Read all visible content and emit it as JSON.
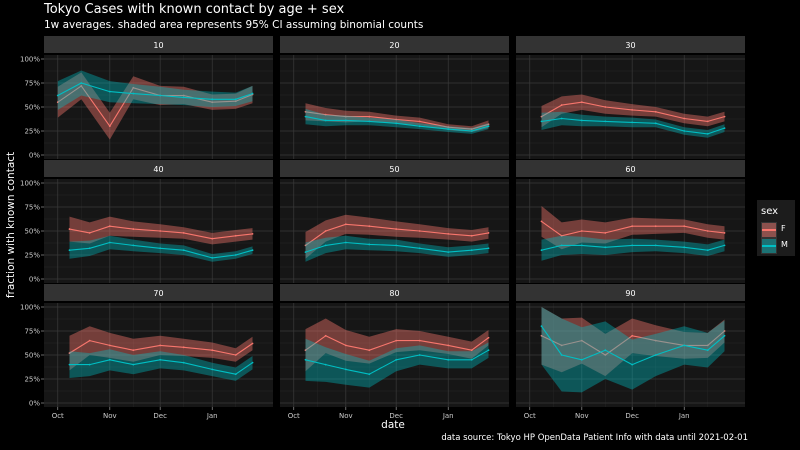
{
  "chart_data": {
    "type": "line",
    "title": "Tokyo Cases with known contact by age + sex",
    "subtitle": "1w averages. shaded area represents 95% CI assuming binomial counts",
    "xlabel": "date",
    "ylabel": "fraction with known contact",
    "caption": "data source: Tokyo HP OpenData Patient Info with data until 2021-02-01",
    "x_ticks": [
      "Oct",
      "Nov",
      "Dec",
      "Jan"
    ],
    "y_ticks": [
      "0%",
      "25%",
      "50%",
      "75%",
      "100%"
    ],
    "ylim": [
      0,
      1
    ],
    "grid": true,
    "legend": {
      "title": "sex",
      "position": "right",
      "entries": [
        {
          "name": "F",
          "color": "#F8766D"
        },
        {
          "name": "M",
          "color": "#00BFC4"
        }
      ]
    },
    "facets": [
      {
        "label": "10",
        "series": [
          {
            "name": "F",
            "x": [
              "2020-10-01",
              "2020-10-15",
              "2020-11-01",
              "2020-11-15",
              "2020-12-01",
              "2020-12-15",
              "2021-01-01",
              "2021-01-15",
              "2021-01-25"
            ],
            "values": [
              0.55,
              0.72,
              0.3,
              0.7,
              0.62,
              0.62,
              0.55,
              0.56,
              0.63
            ],
            "ci_width": [
              0.16,
              0.14,
              0.14,
              0.12,
              0.1,
              0.09,
              0.08,
              0.08,
              0.09
            ]
          },
          {
            "name": "M",
            "x": [
              "2020-10-01",
              "2020-10-15",
              "2020-11-01",
              "2020-11-15",
              "2020-12-01",
              "2020-12-15",
              "2021-01-01",
              "2021-01-15",
              "2021-01-25"
            ],
            "values": [
              0.62,
              0.75,
              0.66,
              0.64,
              0.62,
              0.6,
              0.58,
              0.58,
              0.64
            ],
            "ci_width": [
              0.15,
              0.13,
              0.11,
              0.1,
              0.09,
              0.08,
              0.08,
              0.07,
              0.08
            ]
          }
        ]
      },
      {
        "label": "20",
        "series": [
          {
            "name": "F",
            "x": [
              "2020-10-08",
              "2020-10-20",
              "2020-11-01",
              "2020-11-15",
              "2020-12-01",
              "2020-12-15",
              "2021-01-01",
              "2021-01-15",
              "2021-01-25"
            ],
            "values": [
              0.45,
              0.42,
              0.4,
              0.4,
              0.37,
              0.35,
              0.29,
              0.27,
              0.32
            ],
            "ci_width": [
              0.09,
              0.07,
              0.06,
              0.05,
              0.04,
              0.04,
              0.03,
              0.03,
              0.04
            ]
          },
          {
            "name": "M",
            "x": [
              "2020-10-08",
              "2020-10-20",
              "2020-11-01",
              "2020-11-15",
              "2020-12-01",
              "2020-12-15",
              "2021-01-01",
              "2021-01-15",
              "2021-01-25"
            ],
            "values": [
              0.4,
              0.36,
              0.36,
              0.35,
              0.33,
              0.3,
              0.27,
              0.25,
              0.3
            ],
            "ci_width": [
              0.08,
              0.06,
              0.05,
              0.04,
              0.04,
              0.03,
              0.03,
              0.03,
              0.03
            ]
          }
        ]
      },
      {
        "label": "30",
        "series": [
          {
            "name": "F",
            "x": [
              "2020-10-08",
              "2020-10-20",
              "2020-11-01",
              "2020-11-15",
              "2020-12-01",
              "2020-12-15",
              "2021-01-01",
              "2021-01-15",
              "2021-01-25"
            ],
            "values": [
              0.4,
              0.52,
              0.55,
              0.5,
              0.47,
              0.45,
              0.38,
              0.35,
              0.4
            ],
            "ci_width": [
              0.11,
              0.09,
              0.08,
              0.07,
              0.06,
              0.05,
              0.05,
              0.05,
              0.05
            ]
          },
          {
            "name": "M",
            "x": [
              "2020-10-08",
              "2020-10-20",
              "2020-11-01",
              "2020-11-15",
              "2020-12-01",
              "2020-12-15",
              "2021-01-01",
              "2021-01-15",
              "2021-01-25"
            ],
            "values": [
              0.35,
              0.38,
              0.36,
              0.35,
              0.34,
              0.33,
              0.25,
              0.22,
              0.28
            ],
            "ci_width": [
              0.09,
              0.07,
              0.06,
              0.05,
              0.05,
              0.04,
              0.04,
              0.04,
              0.04
            ]
          }
        ]
      },
      {
        "label": "40",
        "series": [
          {
            "name": "F",
            "x": [
              "2020-10-08",
              "2020-10-20",
              "2020-11-01",
              "2020-11-15",
              "2020-12-01",
              "2020-12-15",
              "2021-01-01",
              "2021-01-15",
              "2021-01-25"
            ],
            "values": [
              0.52,
              0.48,
              0.55,
              0.52,
              0.5,
              0.48,
              0.42,
              0.45,
              0.47
            ],
            "ci_width": [
              0.13,
              0.11,
              0.1,
              0.08,
              0.07,
              0.06,
              0.06,
              0.06,
              0.06
            ]
          },
          {
            "name": "M",
            "x": [
              "2020-10-08",
              "2020-10-20",
              "2020-11-01",
              "2020-11-15",
              "2020-12-01",
              "2020-12-15",
              "2021-01-01",
              "2021-01-15",
              "2021-01-25"
            ],
            "values": [
              0.3,
              0.32,
              0.38,
              0.35,
              0.32,
              0.3,
              0.22,
              0.25,
              0.3
            ],
            "ci_width": [
              0.09,
              0.08,
              0.07,
              0.06,
              0.05,
              0.05,
              0.04,
              0.04,
              0.04
            ]
          }
        ]
      },
      {
        "label": "50",
        "series": [
          {
            "name": "F",
            "x": [
              "2020-10-08",
              "2020-10-20",
              "2020-11-01",
              "2020-11-15",
              "2020-12-01",
              "2020-12-15",
              "2021-01-01",
              "2021-01-15",
              "2021-01-25"
            ],
            "values": [
              0.35,
              0.5,
              0.57,
              0.55,
              0.52,
              0.5,
              0.47,
              0.45,
              0.48
            ],
            "ci_width": [
              0.14,
              0.11,
              0.1,
              0.09,
              0.08,
              0.07,
              0.06,
              0.06,
              0.06
            ]
          },
          {
            "name": "M",
            "x": [
              "2020-10-08",
              "2020-10-20",
              "2020-11-01",
              "2020-11-15",
              "2020-12-01",
              "2020-12-15",
              "2021-01-01",
              "2021-01-15",
              "2021-01-25"
            ],
            "values": [
              0.28,
              0.35,
              0.38,
              0.36,
              0.35,
              0.32,
              0.28,
              0.3,
              0.32
            ],
            "ci_width": [
              0.1,
              0.08,
              0.07,
              0.06,
              0.06,
              0.05,
              0.05,
              0.05,
              0.05
            ]
          }
        ]
      },
      {
        "label": "60",
        "series": [
          {
            "name": "F",
            "x": [
              "2020-10-08",
              "2020-10-20",
              "2020-11-01",
              "2020-11-15",
              "2020-12-01",
              "2020-12-15",
              "2021-01-01",
              "2021-01-15",
              "2021-01-25"
            ],
            "values": [
              0.6,
              0.45,
              0.5,
              0.48,
              0.55,
              0.55,
              0.55,
              0.5,
              0.48
            ],
            "ci_width": [
              0.16,
              0.14,
              0.12,
              0.11,
              0.09,
              0.08,
              0.07,
              0.07,
              0.07
            ]
          },
          {
            "name": "M",
            "x": [
              "2020-10-08",
              "2020-10-20",
              "2020-11-01",
              "2020-11-15",
              "2020-12-01",
              "2020-12-15",
              "2021-01-01",
              "2021-01-15",
              "2021-01-25"
            ],
            "values": [
              0.3,
              0.35,
              0.35,
              0.33,
              0.35,
              0.35,
              0.33,
              0.3,
              0.35
            ],
            "ci_width": [
              0.11,
              0.1,
              0.09,
              0.08,
              0.07,
              0.06,
              0.06,
              0.06,
              0.06
            ]
          }
        ]
      },
      {
        "label": "70",
        "series": [
          {
            "name": "F",
            "x": [
              "2020-10-08",
              "2020-10-20",
              "2020-11-01",
              "2020-11-15",
              "2020-12-01",
              "2020-12-15",
              "2021-01-01",
              "2021-01-15",
              "2021-01-25"
            ],
            "values": [
              0.52,
              0.65,
              0.6,
              0.55,
              0.6,
              0.58,
              0.55,
              0.5,
              0.62
            ],
            "ci_width": [
              0.18,
              0.15,
              0.13,
              0.12,
              0.1,
              0.09,
              0.08,
              0.07,
              0.07
            ]
          },
          {
            "name": "M",
            "x": [
              "2020-10-08",
              "2020-10-20",
              "2020-11-01",
              "2020-11-15",
              "2020-12-01",
              "2020-12-15",
              "2021-01-01",
              "2021-01-15",
              "2021-01-25"
            ],
            "values": [
              0.4,
              0.4,
              0.45,
              0.4,
              0.45,
              0.42,
              0.35,
              0.3,
              0.42
            ],
            "ci_width": [
              0.14,
              0.12,
              0.11,
              0.1,
              0.09,
              0.08,
              0.07,
              0.07,
              0.07
            ]
          }
        ]
      },
      {
        "label": "80",
        "series": [
          {
            "name": "F",
            "x": [
              "2020-10-08",
              "2020-10-20",
              "2020-11-01",
              "2020-11-15",
              "2020-12-01",
              "2020-12-15",
              "2021-01-01",
              "2021-01-15",
              "2021-01-25"
            ],
            "values": [
              0.55,
              0.7,
              0.6,
              0.55,
              0.65,
              0.65,
              0.6,
              0.55,
              0.68
            ],
            "ci_width": [
              0.22,
              0.18,
              0.16,
              0.14,
              0.12,
              0.1,
              0.09,
              0.09,
              0.08
            ]
          },
          {
            "name": "M",
            "x": [
              "2020-10-08",
              "2020-10-20",
              "2020-11-01",
              "2020-11-15",
              "2020-12-01",
              "2020-12-15",
              "2021-01-01",
              "2021-01-15",
              "2021-01-25"
            ],
            "values": [
              0.45,
              0.4,
              0.35,
              0.3,
              0.45,
              0.5,
              0.45,
              0.45,
              0.55
            ],
            "ci_width": [
              0.22,
              0.18,
              0.16,
              0.14,
              0.12,
              0.1,
              0.09,
              0.09,
              0.08
            ]
          }
        ]
      },
      {
        "label": "90",
        "series": [
          {
            "name": "F",
            "x": [
              "2020-10-08",
              "2020-10-20",
              "2020-11-01",
              "2020-11-15",
              "2020-12-01",
              "2020-12-15",
              "2021-01-01",
              "2021-01-15",
              "2021-01-25"
            ],
            "values": [
              0.7,
              0.6,
              0.65,
              0.5,
              0.7,
              0.65,
              0.6,
              0.6,
              0.75
            ],
            "ci_width": [
              0.3,
              0.28,
              0.24,
              0.22,
              0.18,
              0.16,
              0.14,
              0.13,
              0.12
            ]
          },
          {
            "name": "M",
            "x": [
              "2020-10-08",
              "2020-10-20",
              "2020-11-01",
              "2020-11-15",
              "2020-12-01",
              "2020-12-15",
              "2021-01-01",
              "2021-01-15",
              "2021-01-25"
            ],
            "values": [
              0.8,
              0.5,
              0.45,
              0.55,
              0.4,
              0.5,
              0.6,
              0.55,
              0.7
            ],
            "ci_width": [
              0.4,
              0.38,
              0.34,
              0.3,
              0.26,
              0.22,
              0.2,
              0.18,
              0.16
            ]
          }
        ]
      }
    ]
  }
}
